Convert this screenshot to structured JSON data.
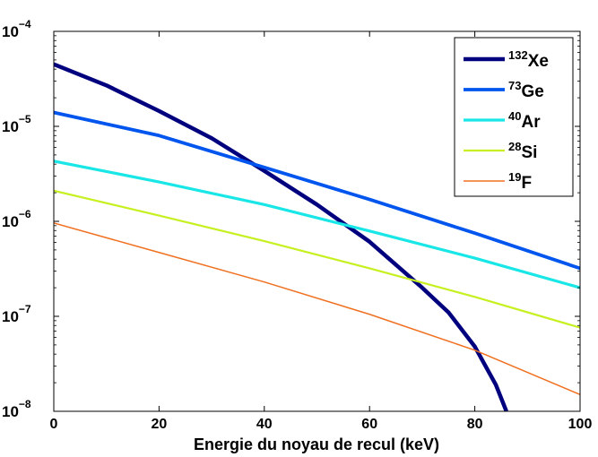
{
  "chart_data": {
    "type": "line",
    "title": "",
    "xlabel": "Energie du noyau de recul (keV)",
    "ylabel": "",
    "xlim": [
      0,
      100
    ],
    "ylim": [
      1e-08,
      0.0001
    ],
    "yscale": "log",
    "grid": false,
    "legend_position": "top-right",
    "x_ticks": [
      {
        "value": 0,
        "label": "0"
      },
      {
        "value": 20,
        "label": "20"
      },
      {
        "value": 40,
        "label": "40"
      },
      {
        "value": 60,
        "label": "60"
      },
      {
        "value": 80,
        "label": "80"
      },
      {
        "value": 100,
        "label": "100"
      }
    ],
    "y_ticks": [
      {
        "value": 1e-08,
        "base": "10",
        "exp": "−8"
      },
      {
        "value": 1e-07,
        "base": "10",
        "exp": "−7"
      },
      {
        "value": 1e-06,
        "base": "10",
        "exp": "−6"
      },
      {
        "value": 1e-05,
        "base": "10",
        "exp": "−5"
      },
      {
        "value": 0.0001,
        "base": "10",
        "exp": "−4"
      }
    ],
    "series": [
      {
        "name_sup": "132",
        "name_main": "Xe",
        "color": "#00007f",
        "width": 4.5,
        "x": [
          0,
          10,
          20,
          30,
          40,
          50,
          60,
          70,
          75,
          80,
          84,
          86
        ],
        "y": [
          4.5e-05,
          2.7e-05,
          1.45e-05,
          7.5e-06,
          3.4e-06,
          1.5e-06,
          6.1e-07,
          2e-07,
          1.1e-07,
          4.8e-08,
          1.9e-08,
          1e-08
        ]
      },
      {
        "name_sup": "73",
        "name_main": "Ge",
        "color": "#0055ee",
        "width": 3.8,
        "x": [
          0,
          20,
          40,
          60,
          80,
          100
        ],
        "y": [
          1.4e-05,
          8e-06,
          3.7e-06,
          1.7e-06,
          7.5e-07,
          3.2e-07
        ]
      },
      {
        "name_sup": "40",
        "name_main": "Ar",
        "color": "#19e6e6",
        "width": 3.2,
        "x": [
          0,
          20,
          40,
          60,
          80,
          100
        ],
        "y": [
          4.3e-06,
          2.6e-06,
          1.5e-06,
          7.9e-07,
          4.1e-07,
          2e-07
        ]
      },
      {
        "name_sup": "28",
        "name_main": "Si",
        "color": "#c6f020",
        "width": 2.2,
        "x": [
          0,
          20,
          40,
          60,
          80,
          100
        ],
        "y": [
          2.1e-06,
          1.15e-06,
          6.2e-07,
          3.2e-07,
          1.6e-07,
          7.6e-08
        ]
      },
      {
        "name_sup": "19",
        "name_main": "F",
        "color": "#f07020",
        "width": 1.5,
        "x": [
          0,
          20,
          40,
          60,
          80,
          100
        ],
        "y": [
          9.6e-07,
          4.7e-07,
          2.3e-07,
          1.05e-07,
          4.4e-08,
          1.5e-08
        ]
      }
    ]
  }
}
